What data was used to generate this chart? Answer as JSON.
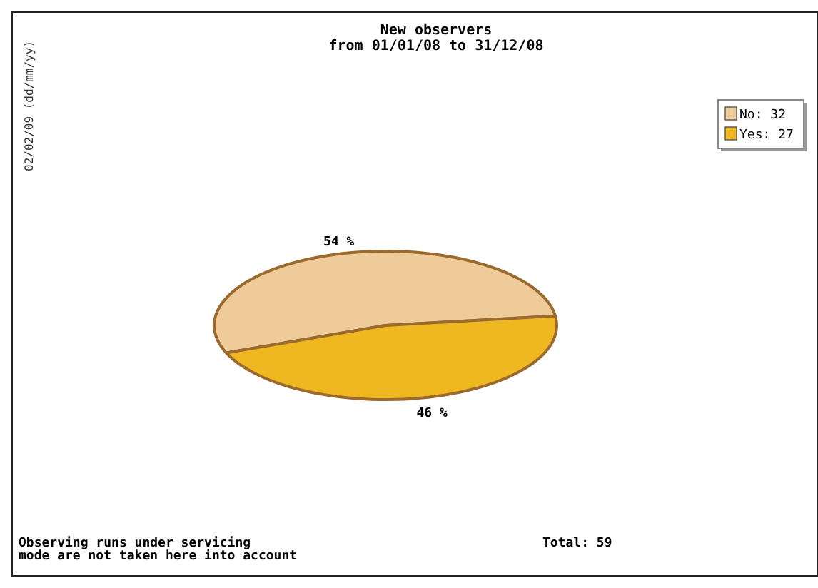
{
  "chart_data": {
    "type": "pie",
    "title": "New observers",
    "subtitle": "from 01/01/08 to 31/12/08",
    "categories": [
      "No: 32",
      "Yes: 27"
    ],
    "values": [
      54,
      46
    ],
    "colors": [
      "#eecb98",
      "#f0b820"
    ],
    "value_labels": [
      "54 %",
      "46 %"
    ],
    "legend": "top right",
    "annotations": [
      "02/02/09 (dd/mm/yy)",
      "Observing runs under servicing\nmode are not taken here into account",
      "Total: 59"
    ]
  }
}
